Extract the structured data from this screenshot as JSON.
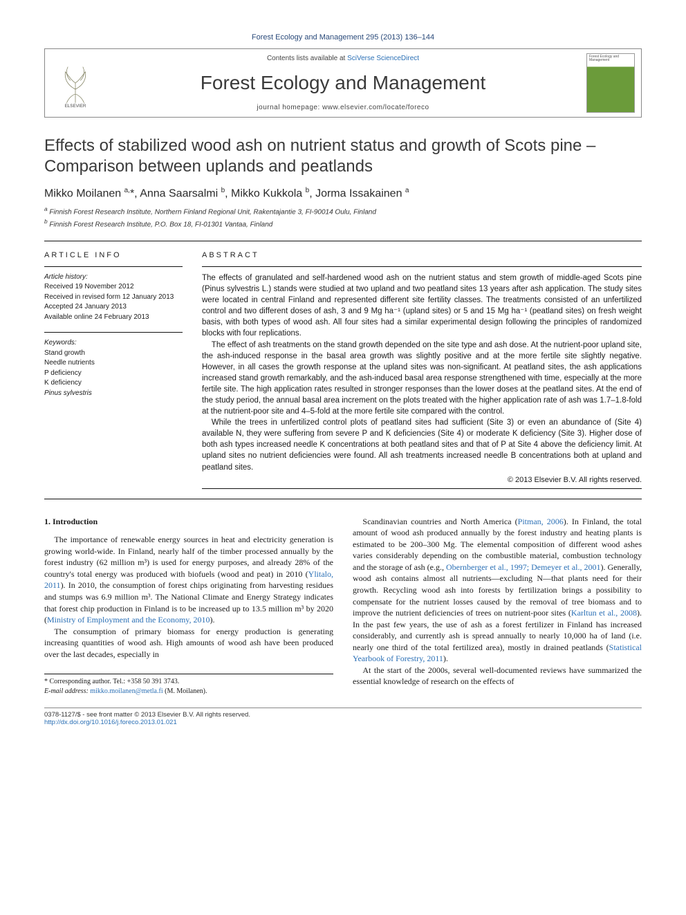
{
  "citation": "Forest Ecology and Management 295 (2013) 136–144",
  "header": {
    "contents_prefix": "Contents lists available at ",
    "contents_link": "SciVerse ScienceDirect",
    "journal": "Forest Ecology and Management",
    "homepage_prefix": "journal homepage: ",
    "homepage": "www.elsevier.com/locate/foreco",
    "publisher_logo_label": "ELSEVIER",
    "cover_label": "Forest Ecology and Management"
  },
  "title": "Effects of stabilized wood ash on nutrient status and growth of Scots pine – Comparison between uplands and peatlands",
  "authors_html": "Mikko Moilanen <sup>a,</sup>*, Anna Saarsalmi <sup>b</sup>, Mikko Kukkola <sup>b</sup>, Jorma Issakainen <sup>a</sup>",
  "affiliations": {
    "a": "Finnish Forest Research Institute, Northern Finland Regional Unit, Rakentajantie 3, FI-90014 Oulu, Finland",
    "b": "Finnish Forest Research Institute, P.O. Box 18, FI-01301 Vantaa, Finland"
  },
  "article_info_heading": "ARTICLE INFO",
  "abstract_heading": "ABSTRACT",
  "history": {
    "label": "Article history:",
    "received": "Received 19 November 2012",
    "revised": "Received in revised form 12 January 2013",
    "accepted": "Accepted 24 January 2013",
    "online": "Available online 24 February 2013"
  },
  "keywords": {
    "label": "Keywords:",
    "items": [
      "Stand growth",
      "Needle nutrients",
      "P deficiency",
      "K deficiency",
      "Pinus sylvestris"
    ]
  },
  "abstract": {
    "p1": "The effects of granulated and self-hardened wood ash on the nutrient status and stem growth of middle-aged Scots pine (Pinus sylvestris L.) stands were studied at two upland and two peatland sites 13 years after ash application. The study sites were located in central Finland and represented different site fertility classes. The treatments consisted of an unfertilized control and two different doses of ash, 3 and 9 Mg ha⁻¹ (upland sites) or 5 and 15 Mg ha⁻¹ (peatland sites) on fresh weight basis, with both types of wood ash. All four sites had a similar experimental design following the principles of randomized blocks with four replications.",
    "p2": "The effect of ash treatments on the stand growth depended on the site type and ash dose. At the nutrient-poor upland site, the ash-induced response in the basal area growth was slightly positive and at the more fertile site slightly negative. However, in all cases the growth response at the upland sites was non-significant. At peatland sites, the ash applications increased stand growth remarkably, and the ash-induced basal area response strengthened with time, especially at the more fertile site. The high application rates resulted in stronger responses than the lower doses at the peatland sites. At the end of the study period, the annual basal area increment on the plots treated with the higher application rate of ash was 1.7–1.8-fold at the nutrient-poor site and 4–5-fold at the more fertile site compared with the control.",
    "p3": "While the trees in unfertilized control plots of peatland sites had sufficient (Site 3) or even an abundance of (Site 4) available N, they were suffering from severe P and K deficiencies (Site 4) or moderate K deficiency (Site 3). Higher dose of both ash types increased needle K concentrations at both peatland sites and that of P at Site 4 above the deficiency limit. At upland sites no nutrient deficiencies were found. All ash treatments increased needle B concentrations both at upland and peatland sites.",
    "copyright": "© 2013 Elsevier B.V. All rights reserved."
  },
  "section1": {
    "heading": "1. Introduction",
    "col1_p1": "The importance of renewable energy sources in heat and electricity generation is growing world-wide. In Finland, nearly half of the timber processed annually by the forest industry (62 million m³) is used for energy purposes, and already 28% of the country's total energy was produced with biofuels (wood and peat) in 2010 (Ylitalo, 2011). In 2010, the consumption of forest chips originating from harvesting residues and stumps was 6.9 million m³. The National Climate and Energy Strategy indicates that forest chip production in Finland is to be increased up to 13.5 million m³ by 2020 (Ministry of Employment and the Economy, 2010).",
    "col1_p2": "The consumption of primary biomass for energy production is generating increasing quantities of wood ash. High amounts of wood ash have been produced over the last decades, especially in",
    "col2_p1": "Scandinavian countries and North America (Pitman, 2006). In Finland, the total amount of wood ash produced annually by the forest industry and heating plants is estimated to be 200–300 Mg. The elemental composition of different wood ashes varies considerably depending on the combustible material, combustion technology and the storage of ash (e.g., Obernberger et al., 1997; Demeyer et al., 2001). Generally, wood ash contains almost all nutrients—excluding N—that plants need for their growth. Recycling wood ash into forests by fertilization brings a possibility to compensate for the nutrient losses caused by the removal of tree biomass and to improve the nutrient deficiencies of trees on nutrient-poor sites (Karltun et al., 2008). In the past few years, the use of ash as a forest fertilizer in Finland has increased considerably, and currently ash is spread annually to nearly 10,000 ha of land (i.e. nearly one third of the total fertilized area), mostly in drained peatlands (Statistical Yearbook of Forestry, 2011).",
    "col2_p2": "At the start of the 2000s, several well-documented reviews have summarized the essential knowledge of research on the effects of"
  },
  "footnote": {
    "corr_label": "* Corresponding author. Tel.: +358 50 391 3743.",
    "email_label": "E-mail address: ",
    "email": "mikko.moilanen@metla.fi",
    "email_who": " (M. Moilanen)."
  },
  "bottom": {
    "issn_line": "0378-1127/$ - see front matter © 2013 Elsevier B.V. All rights reserved.",
    "doi": "http://dx.doi.org/10.1016/j.foreco.2013.01.021"
  },
  "colors": {
    "link": "#2a6fb5",
    "rule": "#111111",
    "text": "#1a1a1a"
  }
}
